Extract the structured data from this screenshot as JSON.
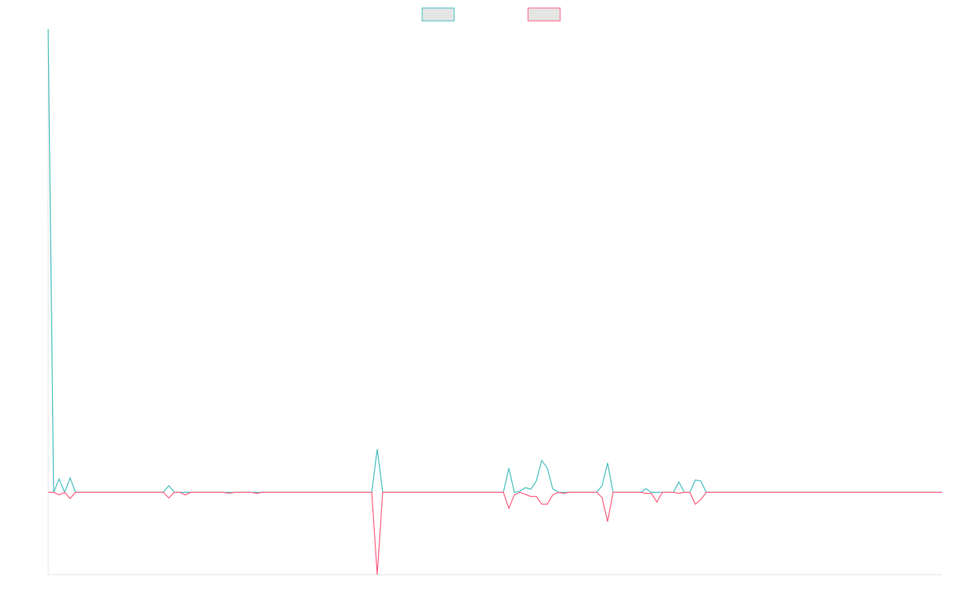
{
  "chart_data": {
    "type": "line",
    "title": "",
    "xlabel": "",
    "ylabel": "",
    "grid": false,
    "legend_position": "top-center",
    "y_range": [
      -0.16,
      0.9
    ],
    "series": [
      {
        "name": "",
        "color": "#4bc0c0",
        "fill": "#e5e5e5",
        "values": [
          0.9,
          0.0,
          0.026,
          0.0,
          0.028,
          0.0,
          0.0,
          0.0,
          0.0,
          0.0,
          0.0,
          0.0,
          0.0,
          0.0,
          0.0,
          0.0,
          0.0,
          0.0,
          0.0,
          0.0,
          0.0,
          0.0,
          0.013,
          0.0,
          0.0,
          0.0,
          0.0,
          0.0,
          0.0,
          0.0,
          0.0,
          0.0,
          0.0,
          0.0,
          0.0,
          0.0,
          0.0,
          0.0,
          0.0,
          0.0,
          0.0,
          0.0,
          0.0,
          0.0,
          0.0,
          0.0,
          0.0,
          0.0,
          0.0,
          0.0,
          0.0,
          0.0,
          0.0,
          0.0,
          0.0,
          0.0,
          0.0,
          0.0,
          0.0,
          0.0,
          0.084,
          0.0,
          0.0,
          0.0,
          0.0,
          0.0,
          0.0,
          0.0,
          0.0,
          0.0,
          0.0,
          0.0,
          0.0,
          0.0,
          0.0,
          0.0,
          0.0,
          0.0,
          0.0,
          0.0,
          0.0,
          0.0,
          0.0,
          0.0,
          0.047,
          0.0,
          0.002,
          0.009,
          0.006,
          0.022,
          0.062,
          0.047,
          0.007,
          0.0,
          0.0,
          0.0,
          0.0,
          0.0,
          0.0,
          0.0,
          0.0,
          0.013,
          0.057,
          0.0,
          0.0,
          0.0,
          0.0,
          0.0,
          0.0,
          0.007,
          0.0,
          0.0,
          0.0,
          0.0,
          0.0,
          0.02,
          0.0,
          0.0,
          0.024,
          0.022,
          0.0,
          0.0,
          0.0,
          0.0,
          0.0,
          0.0,
          0.0,
          0.0,
          0.0,
          0.0,
          0.0,
          0.0,
          0.0,
          0.0,
          0.0,
          0.0,
          0.0,
          0.0,
          0.0,
          0.0,
          0.0,
          0.0,
          0.0,
          0.0,
          0.0,
          0.0,
          0.0,
          0.0,
          0.0,
          0.0,
          0.0,
          0.0,
          0.0,
          0.0,
          0.0,
          0.0,
          0.0,
          0.0,
          0.0,
          0.0,
          0.0,
          0.0,
          0.0,
          0.0
        ]
      },
      {
        "name": "",
        "color": "#ff6384",
        "fill": "#e5e5e5",
        "values": [
          0.0,
          0.0,
          -0.005,
          0.0,
          -0.012,
          0.0,
          0.0,
          0.0,
          0.0,
          0.0,
          0.0,
          0.0,
          0.0,
          0.0,
          0.0,
          0.0,
          0.0,
          0.0,
          0.0,
          0.0,
          0.0,
          0.0,
          -0.011,
          0.0,
          0.0,
          -0.005,
          0.0,
          0.0,
          0.0,
          0.0,
          0.0,
          0.0,
          0.0,
          -0.002,
          0.0,
          0.0,
          0.0,
          0.0,
          -0.002,
          0.0,
          0.0,
          0.0,
          0.0,
          0.0,
          0.0,
          0.0,
          0.0,
          0.0,
          0.0,
          0.0,
          0.0,
          0.0,
          0.0,
          0.0,
          0.0,
          0.0,
          0.0,
          0.0,
          0.0,
          0.0,
          -0.16,
          0.0,
          0.0,
          0.0,
          0.0,
          0.0,
          0.0,
          0.0,
          0.0,
          0.0,
          0.0,
          0.0,
          0.0,
          0.0,
          0.0,
          0.0,
          0.0,
          0.0,
          0.0,
          0.0,
          0.0,
          0.0,
          0.0,
          0.0,
          -0.031,
          -0.005,
          0.0,
          -0.004,
          -0.008,
          -0.008,
          -0.023,
          -0.023,
          -0.005,
          0.0,
          -0.002,
          0.0,
          0.0,
          0.0,
          0.0,
          0.0,
          0.0,
          -0.01,
          -0.057,
          0.0,
          0.0,
          0.0,
          0.0,
          0.0,
          0.0,
          -0.002,
          -0.002,
          -0.019,
          0.0,
          0.0,
          0.0,
          -0.002,
          0.0,
          0.0,
          -0.023,
          -0.014,
          0.0,
          0.0,
          0.0,
          0.0,
          0.0,
          0.0,
          0.0,
          0.0,
          0.0,
          0.0,
          0.0,
          0.0,
          0.0,
          0.0,
          0.0,
          0.0,
          0.0,
          0.0,
          0.0,
          0.0,
          0.0,
          0.0,
          0.0,
          0.0,
          0.0,
          0.0,
          0.0,
          0.0,
          0.0,
          0.0,
          0.0,
          0.0,
          0.0,
          0.0,
          0.0,
          0.0,
          0.0,
          0.0,
          0.0,
          0.0,
          0.0,
          0.0,
          0.0,
          0.0
        ]
      }
    ]
  }
}
